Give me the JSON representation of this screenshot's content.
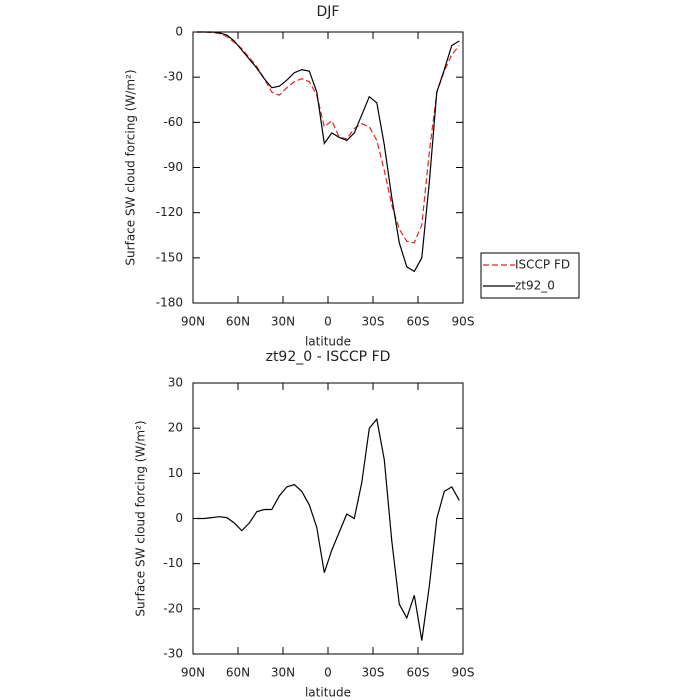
{
  "chart_data": [
    {
      "type": "line",
      "title": "DJF",
      "xlabel": "latitude",
      "ylabel": "Surface SW cloud forcing (W/m²)",
      "x": [
        87.5,
        82.5,
        77.5,
        72.5,
        67.5,
        62.5,
        57.5,
        52.5,
        47.5,
        42.5,
        37.5,
        32.5,
        27.5,
        22.5,
        17.5,
        12.5,
        7.5,
        2.5,
        -2.5,
        -7.5,
        -12.5,
        -17.5,
        -22.5,
        -27.5,
        -32.5,
        -37.5,
        -42.5,
        -47.5,
        -52.5,
        -57.5,
        -62.5,
        -67.5,
        -72.5,
        -77.5,
        -82.5,
        -87.5
      ],
      "series": [
        {
          "name": "ISCCP FD",
          "color": "#e8231f",
          "dashed": true,
          "values": [
            0,
            0,
            -0.3,
            -1,
            -3,
            -7,
            -11,
            -17,
            -23,
            -31,
            -40,
            -42,
            -37,
            -33,
            -31,
            -33,
            -42,
            -63,
            -59,
            -70,
            -71,
            -64,
            -61,
            -63,
            -72,
            -92,
            -115,
            -131,
            -139,
            -140,
            -128,
            -80,
            -40,
            -26,
            -15,
            -9
          ]
        },
        {
          "name": "zt92_0",
          "color": "#000000",
          "dashed": false,
          "values": [
            0,
            0,
            0,
            -0.5,
            -2,
            -6,
            -12,
            -18,
            -24,
            -31,
            -37,
            -36,
            -32,
            -27,
            -25,
            -26,
            -40,
            -74,
            -67,
            -70,
            -72,
            -67,
            -55,
            -43,
            -47,
            -75,
            -110,
            -140,
            -156,
            -159,
            -150,
            -100,
            -40,
            -25,
            -9,
            -6
          ]
        }
      ],
      "xlim": [
        90,
        -90
      ],
      "xticks": [
        {
          "value": 90,
          "label": "90N"
        },
        {
          "value": 60,
          "label": "60N"
        },
        {
          "value": 30,
          "label": "30N"
        },
        0,
        {
          "value": -30,
          "label": "30S"
        },
        {
          "value": -60,
          "label": "60S"
        },
        {
          "value": -90,
          "label": "90S"
        }
      ],
      "ylim": [
        0,
        -180
      ],
      "yticks": [
        0,
        -30,
        -60,
        -90,
        -120,
        -150,
        -180
      ],
      "legend": "right"
    },
    {
      "type": "line",
      "title": "zt92_0 - ISCCP FD",
      "xlabel": "latitude",
      "ylabel": "Surface SW cloud forcing (W/m²)",
      "x": [
        87.5,
        82.5,
        77.5,
        72.5,
        67.5,
        62.5,
        57.5,
        52.5,
        47.5,
        42.5,
        37.5,
        32.5,
        27.5,
        22.5,
        17.5,
        12.5,
        7.5,
        2.5,
        -2.5,
        -7.5,
        -12.5,
        -17.5,
        -22.5,
        -27.5,
        -32.5,
        -37.5,
        -42.5,
        -47.5,
        -52.5,
        -57.5,
        -62.5,
        -67.5,
        -72.5,
        -77.5,
        -82.5,
        -87.5
      ],
      "series": [
        {
          "color": "#000000",
          "dashed": false,
          "values": [
            0,
            0,
            0.2,
            0.4,
            0.2,
            -1,
            -2.7,
            -1,
            1.5,
            2,
            2,
            5,
            7,
            7.5,
            6,
            3,
            -2,
            -12,
            -7,
            -3,
            1,
            0,
            8,
            20,
            22,
            13,
            -5,
            -19,
            -22,
            -17,
            -27,
            -15,
            0,
            6,
            7,
            4
          ]
        }
      ],
      "xlim": [
        90,
        -90
      ],
      "xticks": [
        {
          "value": 90,
          "label": "90N"
        },
        {
          "value": 60,
          "label": "60N"
        },
        {
          "value": 30,
          "label": "30N"
        },
        0,
        {
          "value": -30,
          "label": "30S"
        },
        {
          "value": -60,
          "label": "60S"
        },
        {
          "value": -90,
          "label": "90S"
        }
      ],
      "ylim": [
        30,
        -30
      ],
      "yticks": [
        30,
        20,
        10,
        0,
        -10,
        -20,
        -30
      ]
    }
  ]
}
